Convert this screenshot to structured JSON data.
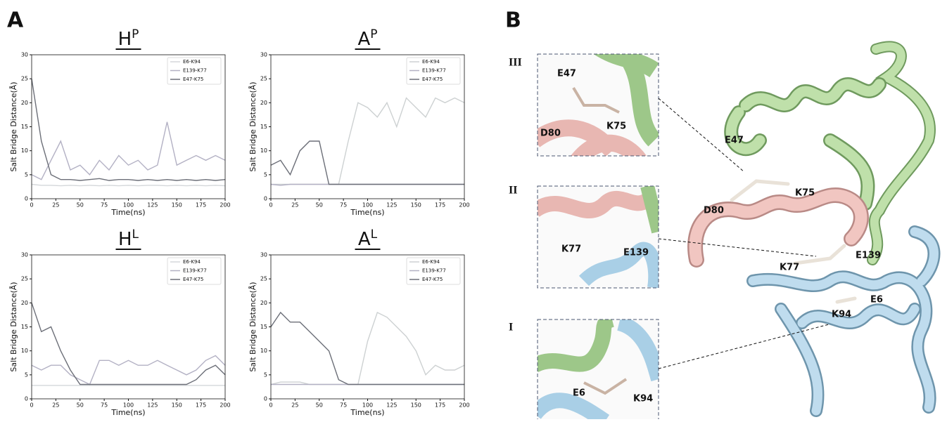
{
  "panel_labels": [
    "A",
    "B"
  ],
  "chart_data": [
    {
      "type": "line",
      "title": "H",
      "title_sup": "P",
      "x_label": "Time(ns)",
      "y_label": "Salt Bridge Distance(Å)",
      "x": [
        0,
        10,
        20,
        30,
        40,
        50,
        60,
        70,
        80,
        90,
        100,
        110,
        120,
        130,
        140,
        150,
        160,
        170,
        180,
        190,
        200
      ],
      "xlim": [
        0,
        200
      ],
      "ylim": [
        0,
        30
      ],
      "xticks": [
        0,
        25,
        50,
        75,
        100,
        125,
        150,
        175,
        200
      ],
      "yticks": [
        0,
        5,
        10,
        15,
        20,
        25,
        30
      ],
      "legend": "upper right",
      "series": [
        {
          "name": "E6-K94",
          "color": "#d4d7da",
          "values": [
            3,
            2.8,
            2.8,
            2.7,
            2.8,
            2.7,
            2.8,
            2.7,
            2.8,
            2.7,
            2.8,
            2.7,
            2.8,
            2.8,
            2.7,
            2.8,
            2.7,
            2.8,
            2.7,
            2.8,
            2.7
          ]
        },
        {
          "name": "E139-K77",
          "color": "#b3b1c4",
          "values": [
            5,
            4,
            8,
            12,
            6,
            7,
            5,
            8,
            6,
            9,
            7,
            8,
            6,
            7,
            16,
            7,
            8,
            9,
            8,
            9,
            8
          ]
        },
        {
          "name": "E47-K75",
          "color": "#6c6f78",
          "values": [
            25,
            12,
            5,
            4,
            4,
            3.8,
            4,
            4.2,
            3.8,
            4,
            4,
            3.8,
            4,
            3.8,
            4,
            3.8,
            4,
            3.8,
            4,
            3.8,
            4
          ]
        }
      ]
    },
    {
      "type": "line",
      "title": "A",
      "title_sup": "P",
      "x_label": "Time(ns)",
      "y_label": "Salt Bridge Distance(Å)",
      "x": [
        0,
        10,
        20,
        30,
        40,
        50,
        60,
        70,
        80,
        90,
        100,
        110,
        120,
        130,
        140,
        150,
        160,
        170,
        180,
        190,
        200
      ],
      "xlim": [
        0,
        200
      ],
      "ylim": [
        0,
        30
      ],
      "xticks": [
        0,
        25,
        50,
        75,
        100,
        125,
        150,
        175,
        200
      ],
      "yticks": [
        0,
        5,
        10,
        15,
        20,
        25,
        30
      ],
      "legend": "upper right",
      "series": [
        {
          "name": "E6-K94",
          "color": "#cdd1d2",
          "values": [
            3,
            3,
            3,
            3,
            3,
            3,
            3,
            3,
            12,
            20,
            19,
            17,
            20,
            15,
            21,
            19,
            17,
            21,
            20,
            21,
            20
          ]
        },
        {
          "name": "E139-K77",
          "color": "#b3b1c4",
          "values": [
            3,
            2.8,
            3,
            3,
            3,
            3,
            3,
            3,
            3,
            3,
            3,
            3,
            3,
            3,
            3,
            3,
            3,
            3,
            3,
            3,
            3
          ]
        },
        {
          "name": "E47-K75",
          "color": "#6c6f78",
          "values": [
            7,
            8,
            5,
            10,
            12,
            12,
            3,
            3,
            3,
            3,
            3,
            3,
            3,
            3,
            3,
            3,
            3,
            3,
            3,
            3,
            3
          ]
        }
      ]
    },
    {
      "type": "line",
      "title": "H",
      "title_sup": "L",
      "x_label": "Time(ns)",
      "y_label": "Salt Bridge Distance(Å)",
      "x": [
        0,
        10,
        20,
        30,
        40,
        50,
        60,
        70,
        80,
        90,
        100,
        110,
        120,
        130,
        140,
        150,
        160,
        170,
        180,
        190,
        200
      ],
      "xlim": [
        0,
        200
      ],
      "ylim": [
        0,
        30
      ],
      "xticks": [
        0,
        25,
        50,
        75,
        100,
        125,
        150,
        175,
        200
      ],
      "yticks": [
        0,
        5,
        10,
        15,
        20,
        25,
        30
      ],
      "legend": "upper right",
      "series": [
        {
          "name": "E6-K94",
          "color": "#d4d7da",
          "values": [
            2.8,
            2.8,
            2.8,
            2.8,
            2.8,
            2.8,
            2.8,
            2.8,
            2.8,
            2.8,
            2.8,
            2.8,
            2.8,
            2.8,
            2.8,
            2.8,
            2.8,
            2.8,
            2.8,
            2.8,
            2.8
          ]
        },
        {
          "name": "E139-K77",
          "color": "#b3b1c4",
          "values": [
            7,
            6,
            7,
            7,
            5,
            4,
            3,
            8,
            8,
            7,
            8,
            7,
            7,
            8,
            7,
            6,
            5,
            6,
            8,
            9,
            7
          ]
        },
        {
          "name": "E47-K75",
          "color": "#6c6f78",
          "values": [
            20,
            14,
            15,
            10,
            6,
            3,
            3,
            3,
            3,
            3,
            3,
            3,
            3,
            3,
            3,
            3,
            3,
            4,
            6,
            7,
            5
          ]
        }
      ]
    },
    {
      "type": "line",
      "title": "A",
      "title_sup": "L",
      "x_label": "Time(ns)",
      "y_label": "Salt Bridge Distance(Å)",
      "x": [
        0,
        10,
        20,
        30,
        40,
        50,
        60,
        70,
        80,
        90,
        100,
        110,
        120,
        130,
        140,
        150,
        160,
        170,
        180,
        190,
        200
      ],
      "xlim": [
        0,
        200
      ],
      "ylim": [
        0,
        30
      ],
      "xticks": [
        0,
        25,
        50,
        75,
        100,
        125,
        150,
        175,
        200
      ],
      "yticks": [
        0,
        5,
        10,
        15,
        20,
        25,
        30
      ],
      "legend": "upper right",
      "series": [
        {
          "name": "E6-K94",
          "color": "#cdd1d2",
          "values": [
            3,
            3.5,
            3.5,
            3.5,
            3,
            3,
            3,
            3,
            3,
            3,
            12,
            18,
            17,
            15,
            13,
            10,
            5,
            7,
            6,
            6,
            7
          ]
        },
        {
          "name": "E139-K77",
          "color": "#b3b1c4",
          "values": [
            3,
            3,
            3,
            3,
            3,
            3,
            3,
            3,
            3,
            3,
            3,
            3,
            3,
            3,
            3,
            3,
            3,
            3,
            3,
            3,
            3
          ]
        },
        {
          "name": "E47-K75",
          "color": "#6c6f78",
          "values": [
            15,
            18,
            16,
            16,
            14,
            12,
            10,
            4,
            3,
            3,
            3,
            3,
            3,
            3,
            3,
            3,
            3,
            3,
            3,
            3,
            3
          ]
        }
      ]
    }
  ],
  "structure": {
    "insets": [
      {
        "label": "III",
        "residues": [
          "E47",
          "D80",
          "K75"
        ]
      },
      {
        "label": "II",
        "residues": [
          "K77",
          "E139"
        ]
      },
      {
        "label": "I",
        "residues": [
          "E6",
          "K94"
        ]
      }
    ],
    "labels": [
      "E47",
      "K75",
      "D80",
      "E139",
      "K77",
      "E6",
      "K94"
    ]
  }
}
